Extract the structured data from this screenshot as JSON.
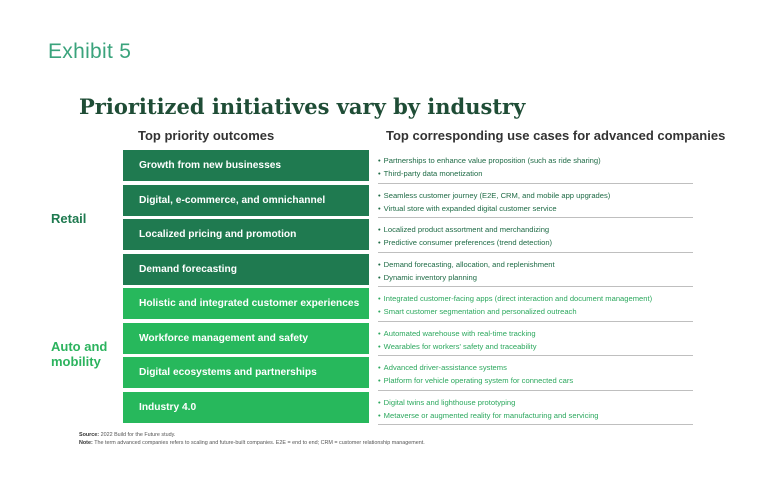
{
  "exhibit_label": "Exhibit 5",
  "title": "Prioritized initiatives vary by industry",
  "headers": {
    "outcomes": "Top priority outcomes",
    "use_cases": "Top corresponding use cases for advanced companies"
  },
  "groups": {
    "retail": "Retail",
    "auto": "Auto and mobility"
  },
  "colors": {
    "retail": "#1f7a50",
    "auto": "#27b85c",
    "exhibit": "#3aa37c",
    "title": "#1f4d36"
  },
  "rows": [
    {
      "group": "retail",
      "outcome": "Growth from new businesses",
      "cases": [
        "Partnerships to enhance value proposition (such as ride sharing)",
        "Third-party data monetization"
      ]
    },
    {
      "group": "retail",
      "outcome": "Digital, e-commerce, and omnichannel",
      "cases": [
        "Seamless customer journey (E2E, CRM, and mobile app upgrades)",
        "Virtual store with expanded digital customer service"
      ]
    },
    {
      "group": "retail",
      "outcome": "Localized pricing and promotion",
      "cases": [
        "Localized product assortment and merchandizing",
        "Predictive consumer preferences (trend detection)"
      ]
    },
    {
      "group": "retail",
      "outcome": "Demand forecasting",
      "cases": [
        "Demand forecasting, allocation, and replenishment",
        "Dynamic inventory planning"
      ]
    },
    {
      "group": "auto",
      "outcome": "Holistic and integrated customer experiences",
      "cases": [
        "Integrated customer-facing apps (direct interaction and document management)",
        "Smart customer segmentation and personalized outreach"
      ]
    },
    {
      "group": "auto",
      "outcome": "Workforce management and safety",
      "cases": [
        "Automated warehouse with real-time tracking",
        "Wearables for workers' safety and traceability"
      ]
    },
    {
      "group": "auto",
      "outcome": "Digital ecosystems and partnerships",
      "cases": [
        "Advanced driver-assistance systems",
        "Platform for vehicle operating system for connected cars"
      ]
    },
    {
      "group": "auto",
      "outcome": "Industry 4.0",
      "cases": [
        "Digital twins and lighthouse prototyping",
        "Metaverse or augmented reality for manufacturing and servicing"
      ]
    }
  ],
  "footer": {
    "source_label": "Source:",
    "source_text": "2022 Build for the Future study.",
    "note_label": "Note:",
    "note_text": "The term advanced companies refers to scaling and future-built companies. E2E = end to end; CRM = customer relationship management."
  }
}
